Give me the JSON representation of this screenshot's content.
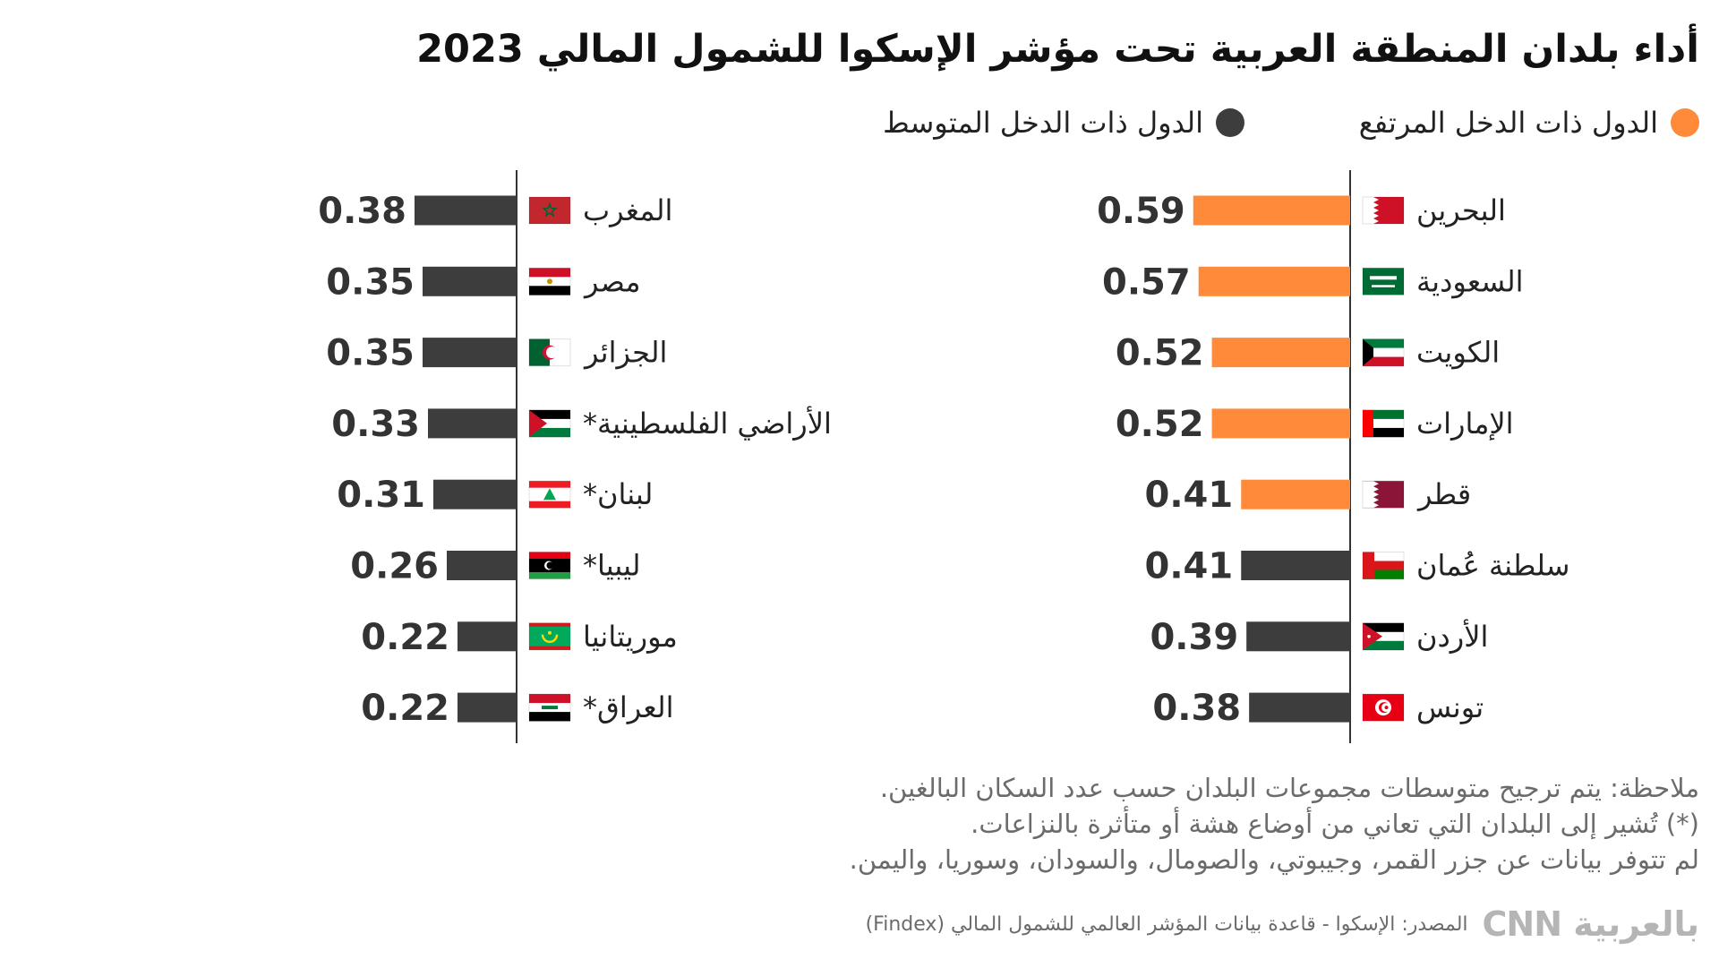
{
  "title": "أداء بلدان المنطقة العربية تحت مؤشر الإسكوا للشمول المالي 2023",
  "legend": [
    {
      "label": "الدول ذات الدخل المرتفع",
      "color": "#fe8a3a"
    },
    {
      "label": "الدول ذات الدخل المتوسط",
      "color": "#3d3d3d"
    }
  ],
  "colors": {
    "high_income": "#fe8a3a",
    "middle_income": "#3d3d3d",
    "axis": "#333333"
  },
  "chart_data": [
    {
      "type": "bar",
      "orientation": "horizontal",
      "categories": [
        "البحرين",
        "السعودية",
        "الكويت",
        "الإمارات",
        "قطر",
        "سلطنة عُمان",
        "الأردن",
        "تونس"
      ],
      "values": [
        0.59,
        0.57,
        0.52,
        0.52,
        0.41,
        0.41,
        0.39,
        0.38
      ],
      "labels": [
        "0.59",
        "0.57",
        "0.52",
        "0.52",
        "0.41",
        "0.41",
        "0.39",
        "0.38"
      ],
      "groups": [
        "high",
        "high",
        "high",
        "high",
        "high",
        "middle",
        "middle",
        "middle"
      ],
      "flags": [
        "bahrain-flag",
        "saudi-arabia-flag",
        "kuwait-flag",
        "uae-flag",
        "qatar-flag",
        "oman-flag",
        "jordan-flag",
        "tunisia-flag"
      ],
      "xlim": [
        0,
        0.59
      ]
    },
    {
      "type": "bar",
      "orientation": "horizontal",
      "categories": [
        "المغرب",
        "مصر",
        "الجزائر",
        "الأراضي الفلسطينية*",
        "لبنان*",
        "ليبيا*",
        "موريتانيا",
        "العراق*"
      ],
      "values": [
        0.38,
        0.35,
        0.35,
        0.33,
        0.31,
        0.26,
        0.22,
        0.22
      ],
      "labels": [
        "0.38",
        "0.35",
        "0.35",
        "0.33",
        "0.31",
        "0.26",
        "0.22",
        "0.22"
      ],
      "groups": [
        "middle",
        "middle",
        "middle",
        "middle",
        "middle",
        "middle",
        "middle",
        "middle"
      ],
      "flags": [
        "morocco-flag",
        "egypt-flag",
        "algeria-flag",
        "palestine-flag",
        "lebanon-flag",
        "libya-flag",
        "mauritania-flag",
        "iraq-flag"
      ],
      "xlim": [
        0,
        0.59
      ]
    }
  ],
  "notes": [
    "ملاحظة: يتم ترجيح متوسطات مجموعات البلدان حسب عدد السكان البالغين.",
    "(*) تُشير إلى البلدان التي تعاني من أوضاع هشة أو متأثرة بالنزاعات.",
    "لم تتوفر بيانات عن جزر القمر، وجيبوتي، والصومال، والسودان، وسوريا، واليمن."
  ],
  "source": "المصدر: الإسكوا - قاعدة بيانات المؤشر العالمي للشمول المالي (Findex)",
  "logo": "بالعربية CNN"
}
